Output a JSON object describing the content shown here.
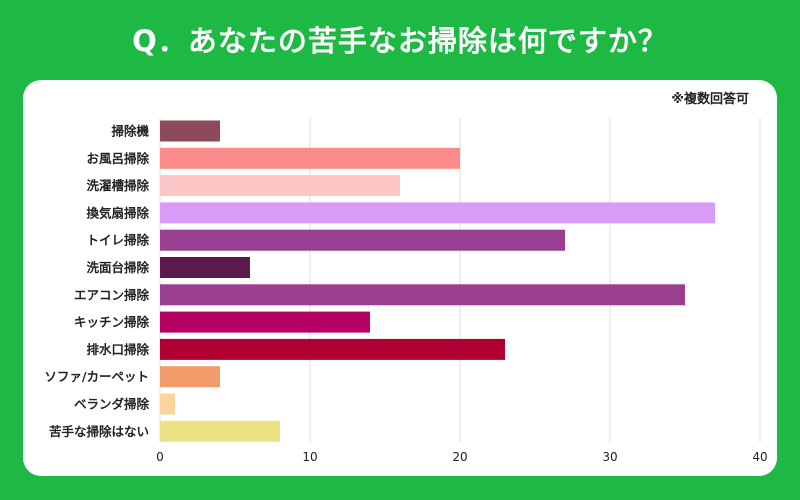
{
  "header": {
    "title": "Q．あなたの苦手なお掃除は何ですか？"
  },
  "note": "※複数回答可",
  "chart_data": {
    "type": "bar",
    "orientation": "horizontal",
    "categories": [
      "掃除機",
      "お風呂掃除",
      "洗濯槽掃除",
      "換気扇掃除",
      "トイレ掃除",
      "洗面台掃除",
      "エアコン掃除",
      "キッチン掃除",
      "排水口掃除",
      "ソファ/カーペット",
      "ベランダ掃除",
      "苦手な掃除はない"
    ],
    "values": [
      4,
      20,
      16,
      37,
      27,
      6,
      35,
      14,
      23,
      4,
      1,
      8
    ],
    "colors": [
      "#8e4a5a",
      "#fb8a8a",
      "#fcc6c6",
      "#d89cf6",
      "#9a3e92",
      "#5c1a4c",
      "#9a3e92",
      "#b50064",
      "#b00032",
      "#f29c6c",
      "#fcd49c",
      "#ece284"
    ],
    "xlim": [
      0,
      40
    ],
    "xticks": [
      0,
      10,
      20,
      30,
      40
    ],
    "grid": true,
    "title": "Q．あなたの苦手なお掃除は何ですか？",
    "xlabel": "",
    "ylabel": ""
  }
}
